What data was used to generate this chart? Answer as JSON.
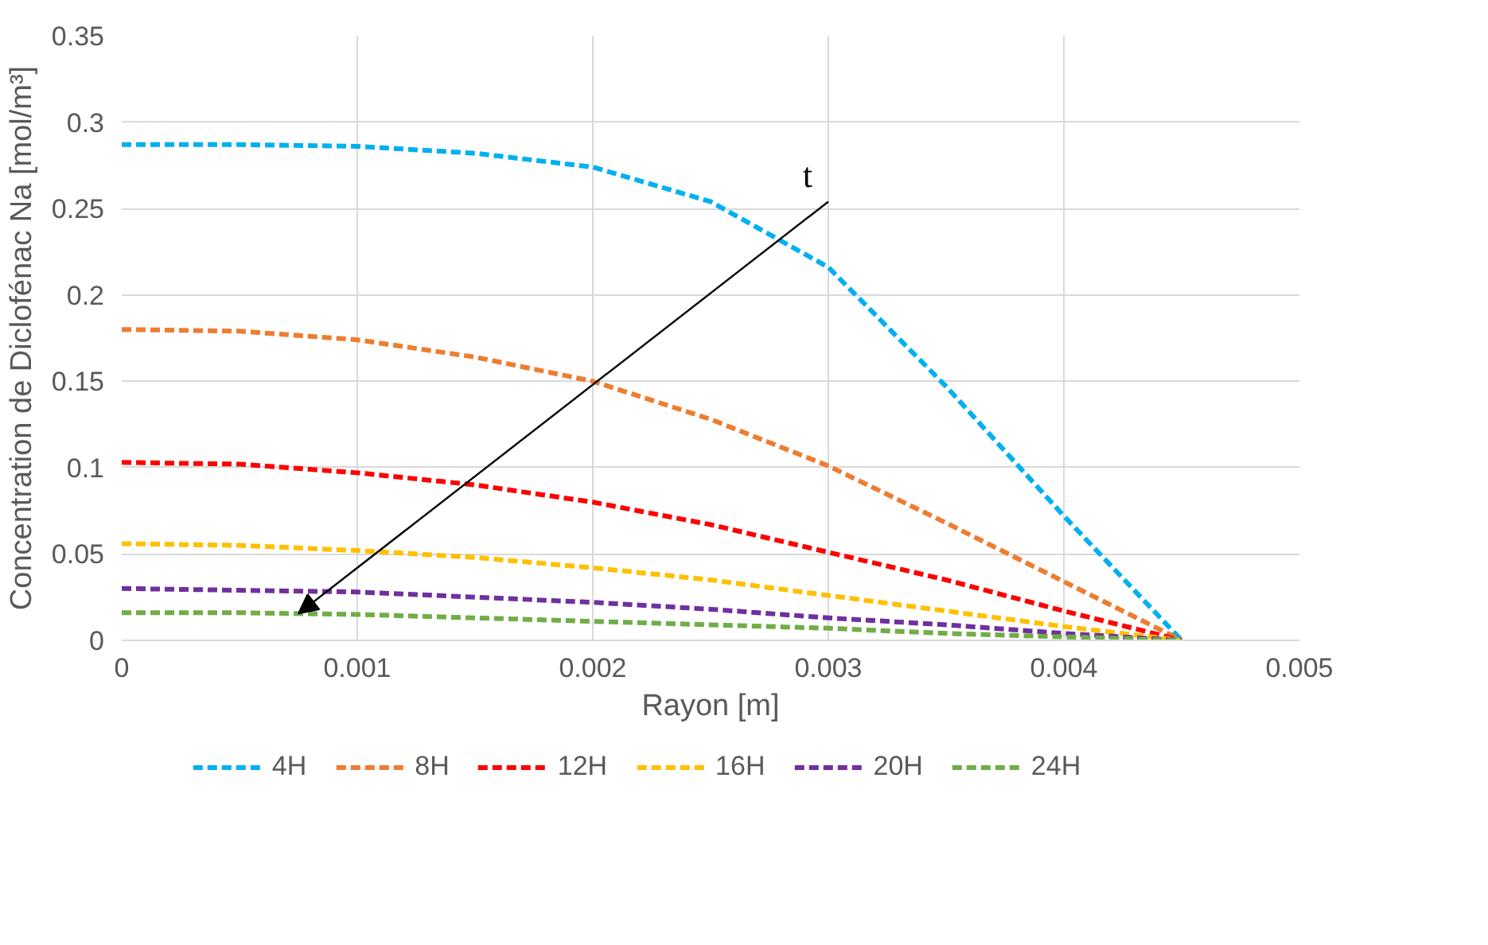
{
  "chart_data": {
    "type": "line",
    "xlabel": "Rayon [m]",
    "ylabel": "Concentration de Diclofénac Na [mol/m³]",
    "x": [
      0,
      0.0005,
      0.001,
      0.0015,
      0.002,
      0.0025,
      0.003,
      0.0035,
      0.004,
      0.0045
    ],
    "xlim": [
      0,
      0.005
    ],
    "xticks": [
      0,
      0.001,
      0.002,
      0.003,
      0.004,
      0.005
    ],
    "ylim": [
      0,
      0.35
    ],
    "yticks": [
      0,
      0.05,
      0.1,
      0.15,
      0.2,
      0.25,
      0.3,
      0.35
    ],
    "grid": true,
    "legend": "bottom",
    "line_style": "dashed",
    "marker": "none",
    "annotations": [
      "t"
    ],
    "series": [
      {
        "name": "4H",
        "color": "#00b0f0",
        "values": [
          0.287,
          0.287,
          0.286,
          0.282,
          0.274,
          0.254,
          0.216,
          0.147,
          0.072,
          0
        ]
      },
      {
        "name": "8H",
        "color": "#ed7d31",
        "values": [
          0.18,
          0.179,
          0.174,
          0.164,
          0.15,
          0.128,
          0.101,
          0.068,
          0.034,
          0
        ]
      },
      {
        "name": "12H",
        "color": "#ff0000",
        "values": [
          0.103,
          0.102,
          0.097,
          0.09,
          0.08,
          0.067,
          0.051,
          0.035,
          0.017,
          0
        ]
      },
      {
        "name": "16H",
        "color": "#ffc000",
        "values": [
          0.056,
          0.055,
          0.052,
          0.048,
          0.042,
          0.035,
          0.026,
          0.017,
          0.008,
          0
        ]
      },
      {
        "name": "20H",
        "color": "#7030a0",
        "values": [
          0.03,
          0.029,
          0.028,
          0.025,
          0.022,
          0.018,
          0.013,
          0.009,
          0.004,
          0
        ]
      },
      {
        "name": "24H",
        "color": "#70ad47",
        "values": [
          0.016,
          0.016,
          0.015,
          0.013,
          0.011,
          0.009,
          0.007,
          0.004,
          0.002,
          0
        ]
      }
    ]
  }
}
